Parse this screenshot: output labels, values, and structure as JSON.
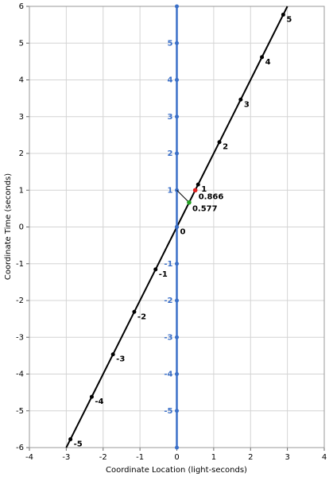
{
  "chart_data": {
    "type": "scatter",
    "x_label": "Coordinate Location (light-seconds)",
    "y_label": "Coordinate Time (seconds)",
    "xlim": [
      -4,
      4
    ],
    "ylim": [
      -6,
      6
    ],
    "xticks": [
      -4,
      -3,
      -2,
      -1,
      0,
      1,
      2,
      3,
      4
    ],
    "yticks": [
      -6,
      -5,
      -4,
      -3,
      -2,
      -1,
      0,
      1,
      2,
      3,
      4,
      5,
      6
    ],
    "grid": true,
    "series": [
      {
        "color": "#000000",
        "x": [
          -2.887,
          -2.309,
          -1.732,
          -1.155,
          -0.577,
          0,
          0.577,
          1.155,
          1.732,
          2.309,
          2.887
        ],
        "values": [
          -5.774,
          -4.619,
          -3.464,
          -2.309,
          -1.155,
          0,
          1.155,
          2.309,
          3.464,
          4.619,
          5.774
        ],
        "point_labels": [
          "-5",
          "-4",
          "-3",
          "-2",
          "-1",
          "0",
          "1",
          "2",
          "3",
          "4",
          "5"
        ]
      },
      {
        "color": "#3a6fc8",
        "x": [
          0,
          0,
          0,
          0,
          0,
          0,
          0,
          0,
          0,
          0,
          0,
          0,
          0
        ],
        "values": [
          -6,
          -5,
          -4,
          -3,
          -2,
          -1,
          0,
          1,
          2,
          3,
          4,
          5,
          6
        ],
        "point_labels": [
          null,
          "-5",
          "-4",
          "-3",
          "-2",
          "-1",
          null,
          "1",
          "2",
          "3",
          "4",
          "5",
          null
        ]
      }
    ],
    "annotations": [
      {
        "text": "0.866",
        "x": 0.5,
        "y": 1,
        "color": "#e02020"
      },
      {
        "text": "0.577",
        "x": 0.333,
        "y": 0.667,
        "color": "#20a020"
      }
    ]
  }
}
